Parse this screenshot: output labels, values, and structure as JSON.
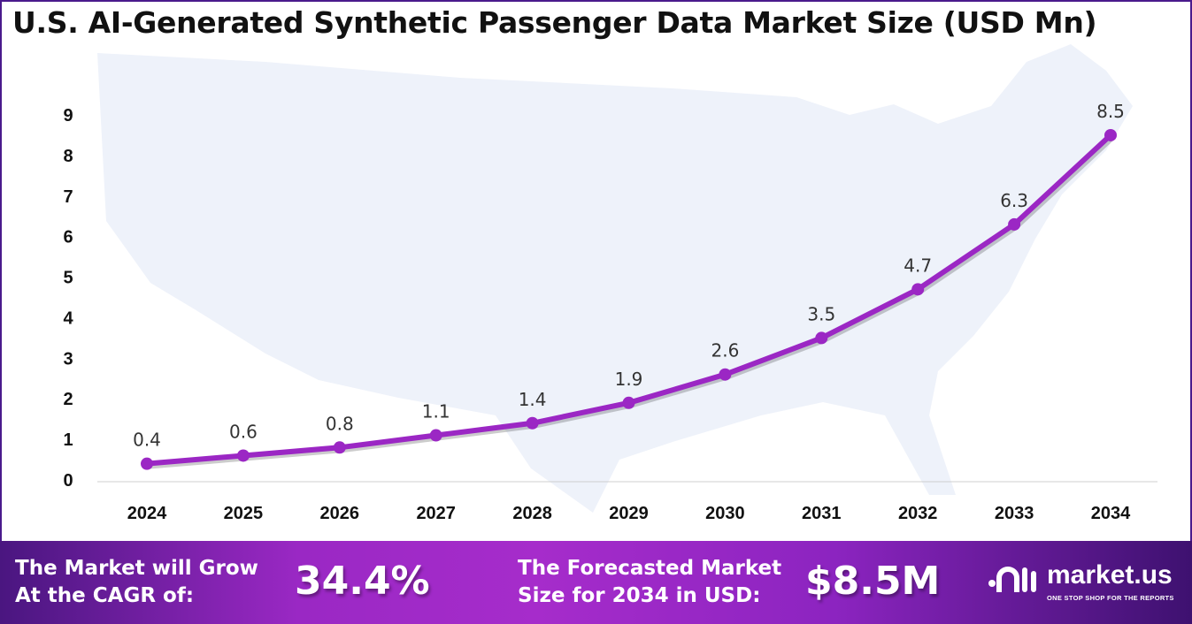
{
  "title": "U.S. AI-Generated Synthetic Passenger Data Market Size (USD Mn)",
  "chart_data": {
    "type": "line",
    "title": "U.S. AI-Generated Synthetic Passenger Data Market Size (USD Mn)",
    "categories": [
      "2024",
      "2025",
      "2026",
      "2027",
      "2028",
      "2029",
      "2030",
      "2031",
      "2032",
      "2033",
      "2034"
    ],
    "values": [
      0.4,
      0.6,
      0.8,
      1.1,
      1.4,
      1.9,
      2.6,
      3.5,
      4.7,
      6.3,
      8.5
    ],
    "data_labels": [
      "0.4",
      "0.6",
      "0.8",
      "1.1",
      "1.4",
      "1.9",
      "2.6",
      "3.5",
      "4.7",
      "6.3",
      "8.5"
    ],
    "yticks": [
      "0",
      "1",
      "2",
      "3",
      "4",
      "5",
      "6",
      "7",
      "8",
      "9"
    ],
    "ylim": [
      0,
      9
    ],
    "grid": false,
    "line_color": "#9b27c4"
  },
  "footer": {
    "cagr_label_1": "The Market will Grow",
    "cagr_label_2": "At the CAGR of:",
    "cagr_value": "34.4%",
    "forecast_label_1": "The Forecasted Market",
    "forecast_label_2": "Size for 2034 in USD:",
    "forecast_value": "$8.5M",
    "logo_name": "market.us",
    "logo_tagline": "ONE STOP SHOP FOR THE REPORTS"
  }
}
